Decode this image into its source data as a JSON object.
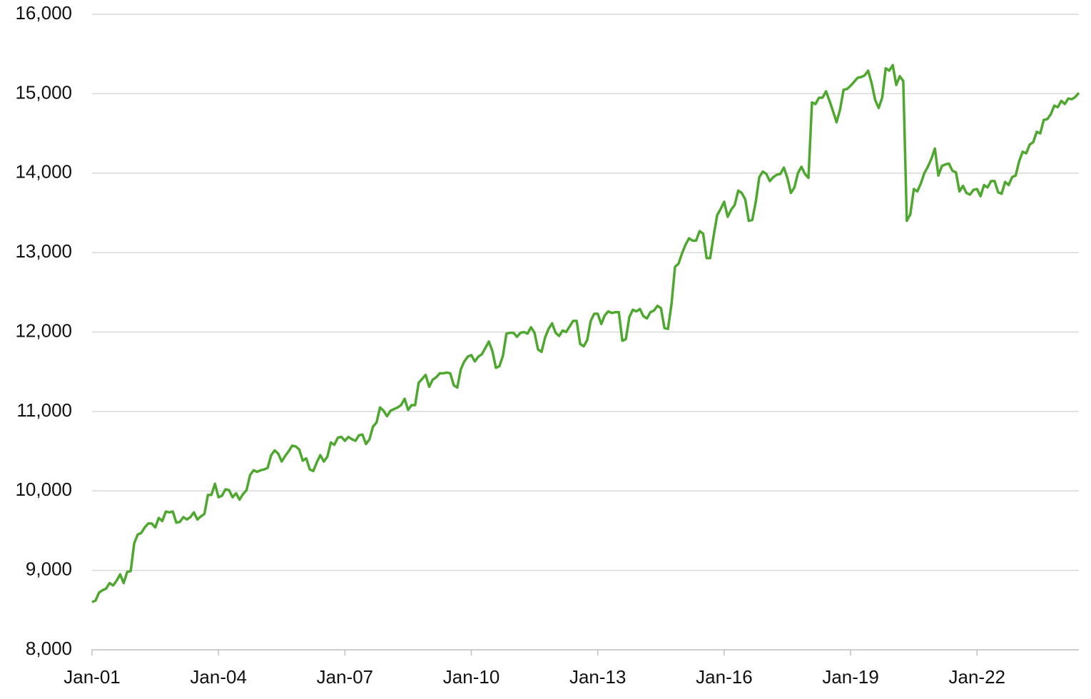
{
  "chart_data": {
    "type": "line",
    "categories": [
      "Jan-01",
      null,
      null,
      null,
      null,
      null,
      null,
      null,
      null,
      null,
      null,
      null,
      null,
      null,
      null,
      null,
      null,
      null,
      null,
      null,
      null,
      null,
      null,
      null,
      null,
      null,
      null,
      null,
      null,
      null,
      null,
      null,
      null,
      null,
      null,
      null,
      "Jan-04",
      null,
      null,
      null,
      null,
      null,
      null,
      null,
      null,
      null,
      null,
      null,
      null,
      null,
      null,
      null,
      null,
      null,
      null,
      null,
      null,
      null,
      null,
      null,
      null,
      null,
      null,
      null,
      null,
      null,
      null,
      null,
      null,
      null,
      null,
      null,
      "Jan-07",
      null,
      null,
      null,
      null,
      null,
      null,
      null,
      null,
      null,
      null,
      null,
      null,
      null,
      null,
      null,
      null,
      null,
      null,
      null,
      null,
      null,
      null,
      null,
      null,
      null,
      null,
      null,
      null,
      null,
      null,
      null,
      null,
      null,
      null,
      null,
      "Jan-10",
      null,
      null,
      null,
      null,
      null,
      null,
      null,
      null,
      null,
      null,
      null,
      null,
      null,
      null,
      null,
      null,
      null,
      null,
      null,
      null,
      null,
      null,
      null,
      null,
      null,
      null,
      null,
      null,
      null,
      null,
      null,
      null,
      null,
      null,
      null,
      "Jan-13",
      null,
      null,
      null,
      null,
      null,
      null,
      null,
      null,
      null,
      null,
      null,
      null,
      null,
      null,
      null,
      null,
      null,
      null,
      null,
      null,
      null,
      null,
      null,
      null,
      null,
      null,
      null,
      null,
      null,
      null,
      null,
      null,
      null,
      null,
      null,
      "Jan-16",
      null,
      null,
      null,
      null,
      null,
      null,
      null,
      null,
      null,
      null,
      null,
      null,
      null,
      null,
      null,
      null,
      null,
      null,
      null,
      null,
      null,
      null,
      null,
      null,
      null,
      null,
      null,
      null,
      null,
      null,
      null,
      null,
      null,
      null,
      null,
      "Jan-19",
      null,
      null,
      null,
      null,
      null,
      null,
      null,
      null,
      null,
      null,
      null,
      null,
      null,
      null,
      null,
      null,
      null,
      null,
      null,
      null,
      null,
      null,
      null,
      null,
      null,
      null,
      null,
      null,
      null,
      null,
      null,
      null,
      null,
      null,
      null,
      "Jan-22",
      null,
      null,
      null,
      null,
      null,
      null,
      null,
      null,
      null,
      null,
      null,
      null,
      null,
      null,
      null,
      null,
      null,
      null,
      null,
      null,
      null,
      null,
      null,
      null,
      null,
      null,
      null,
      null,
      null
    ],
    "series": [
      {
        "color": "#4ea72e",
        "values": [
          8600,
          8620,
          8720,
          8750,
          8770,
          8840,
          8810,
          8870,
          8950,
          8840,
          8980,
          8990,
          9340,
          9450,
          9470,
          9540,
          9590,
          9590,
          9540,
          9660,
          9620,
          9740,
          9730,
          9740,
          9600,
          9610,
          9670,
          9640,
          9670,
          9730,
          9640,
          9680,
          9710,
          9950,
          9950,
          10090,
          9920,
          9940,
          10020,
          10010,
          9920,
          9970,
          9890,
          9960,
          10010,
          10200,
          10260,
          10240,
          10260,
          10270,
          10290,
          10450,
          10510,
          10470,
          10370,
          10440,
          10500,
          10570,
          10560,
          10520,
          10380,
          10410,
          10270,
          10250,
          10360,
          10450,
          10370,
          10430,
          10610,
          10580,
          10670,
          10680,
          10630,
          10680,
          10650,
          10630,
          10700,
          10710,
          10590,
          10650,
          10810,
          10860,
          11050,
          11010,
          10940,
          11010,
          11030,
          11050,
          11080,
          11160,
          11020,
          11080,
          11080,
          11360,
          11410,
          11460,
          11310,
          11400,
          11430,
          11480,
          11480,
          11490,
          11480,
          11330,
          11300,
          11530,
          11630,
          11690,
          11710,
          11630,
          11690,
          11720,
          11800,
          11880,
          11760,
          11550,
          11570,
          11700,
          11980,
          11990,
          11990,
          11940,
          11990,
          12000,
          11980,
          12060,
          11990,
          11780,
          11750,
          11930,
          12040,
          12110,
          11990,
          11950,
          12020,
          12000,
          12070,
          12140,
          12140,
          11850,
          11820,
          11900,
          12140,
          12230,
          12230,
          12100,
          12210,
          12260,
          12240,
          12250,
          12250,
          11890,
          11910,
          12190,
          12280,
          12260,
          12290,
          12200,
          12170,
          12250,
          12270,
          12330,
          12300,
          12050,
          12040,
          12350,
          12820,
          12860,
          12990,
          13100,
          13180,
          13150,
          13150,
          13270,
          13240,
          12930,
          12930,
          13210,
          13470,
          13550,
          13640,
          13450,
          13540,
          13600,
          13780,
          13750,
          13670,
          13400,
          13410,
          13640,
          13950,
          14020,
          13990,
          13900,
          13950,
          13980,
          13990,
          14070,
          13940,
          13750,
          13820,
          14000,
          14080,
          13990,
          13940,
          14890,
          14870,
          14950,
          14950,
          15030,
          14910,
          14780,
          14640,
          14800,
          15050,
          15060,
          15100,
          15150,
          15200,
          15210,
          15230,
          15290,
          15130,
          14920,
          14820,
          14950,
          15320,
          15290,
          15360,
          15110,
          15220,
          15160,
          13400,
          13480,
          13800,
          13770,
          13870,
          14000,
          14080,
          14180,
          14310,
          13970,
          14090,
          14110,
          14120,
          14030,
          14010,
          13770,
          13840,
          13750,
          13730,
          13790,
          13800,
          13710,
          13850,
          13820,
          13900,
          13900,
          13760,
          13740,
          13890,
          13850,
          13950,
          13970,
          14150,
          14270,
          14250,
          14360,
          14390,
          14520,
          14500,
          14670,
          14680,
          14740,
          14850,
          14830,
          14910,
          14870,
          14940,
          14930,
          14960,
          15010
        ]
      }
    ],
    "ylim": [
      8000,
      16000
    ],
    "yticks": [
      {
        "value": 8000,
        "label": "8,000"
      },
      {
        "value": 9000,
        "label": "9,000"
      },
      {
        "value": 10000,
        "label": "10,000"
      },
      {
        "value": 11000,
        "label": "11,000"
      },
      {
        "value": 12000,
        "label": "12,000"
      },
      {
        "value": 13000,
        "label": "13,000"
      },
      {
        "value": 14000,
        "label": "14,000"
      },
      {
        "value": 15000,
        "label": "15,000"
      },
      {
        "value": 16000,
        "label": "16,000"
      }
    ],
    "grid": true
  }
}
